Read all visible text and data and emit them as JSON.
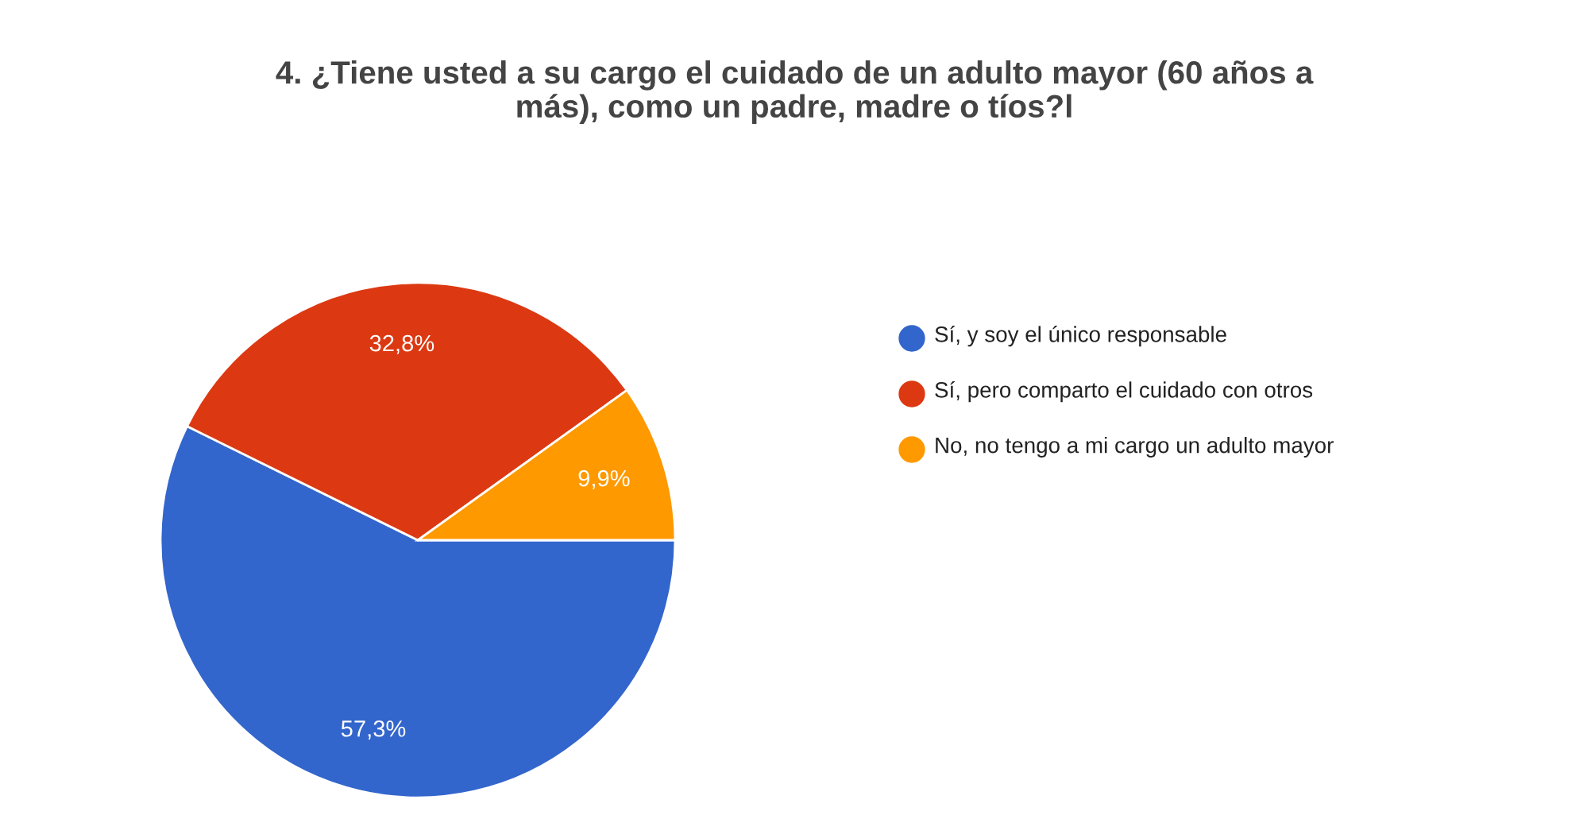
{
  "chart_data": {
    "type": "pie",
    "title": "4. ¿Tiene usted a su cargo el cuidado de un adulto mayor (60 años a más), como un padre, madre o tíos?l",
    "categories": [
      "Sí, y soy el único responsable",
      "Sí, pero comparto el cuidado con otros",
      "No, no tengo a mi cargo un adulto mayor"
    ],
    "values": [
      57.3,
      32.8,
      9.9
    ],
    "value_labels": [
      "57,3%",
      "32,8%",
      "9,9%"
    ],
    "colors": [
      "#3366cc",
      "#dc3912",
      "#ff9900"
    ],
    "legend": "right"
  }
}
